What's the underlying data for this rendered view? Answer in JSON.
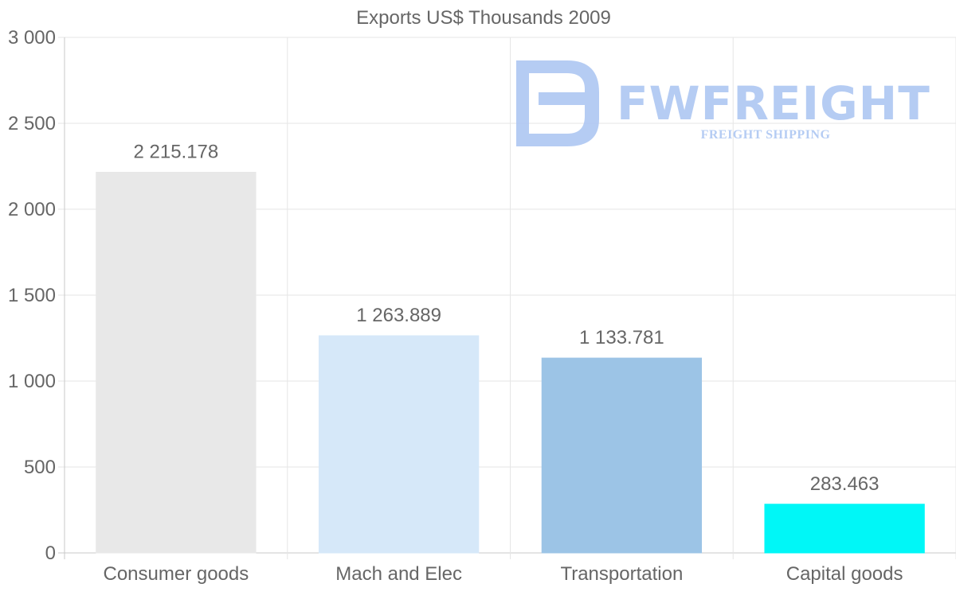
{
  "chart_data": {
    "type": "bar",
    "title": "Exports US$ Thousands 2009",
    "categories": [
      "Consumer goods",
      "Mach and Elec",
      "Transportation",
      "Capital goods"
    ],
    "values": [
      2215.178,
      1263.889,
      1133.781,
      283.463
    ],
    "value_labels": [
      "2 215.178",
      "1 263.889",
      "1 133.781",
      "283.463"
    ],
    "colors": [
      "#e8e8e8",
      "#d6e8f9",
      "#9cc4e6",
      "#00f7f7"
    ],
    "border_colors": [
      "#e8e8e8",
      "#d6e8f9",
      "#9cc4e6",
      "#00f7f7"
    ],
    "ylim": [
      0,
      3000
    ],
    "yticks": [
      0,
      500,
      1000,
      1500,
      2000,
      2500,
      3000
    ],
    "ytick_labels": [
      "0",
      "500",
      "1 000",
      "1 500",
      "2 000",
      "2 500",
      "3 000"
    ],
    "xlabel": "",
    "ylabel": "",
    "grid": true,
    "legend": "none"
  },
  "watermark": {
    "brand": "FWFREIGHT",
    "tagline": "FREIGHT SHIPPING",
    "color": "#a9c4f2"
  }
}
